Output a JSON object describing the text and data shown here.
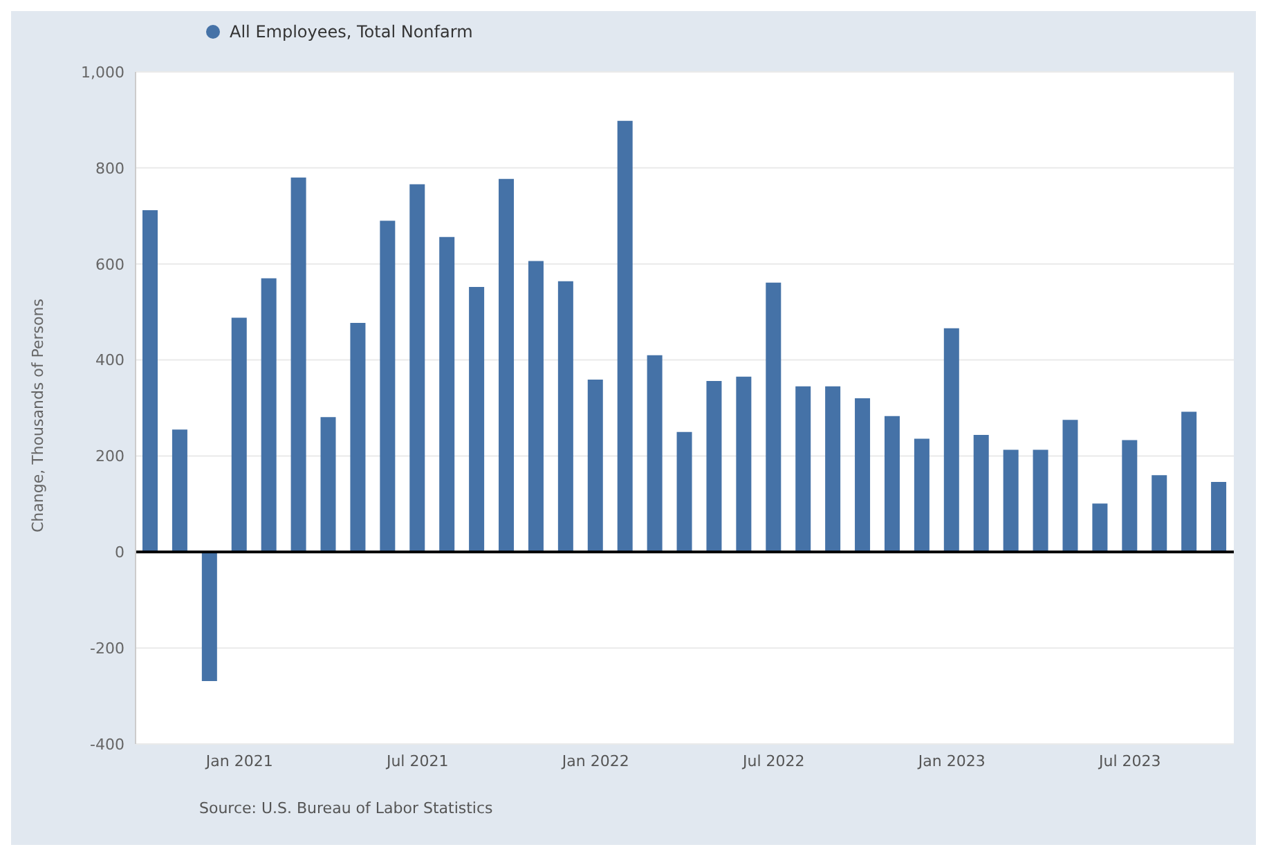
{
  "chart_data": {
    "type": "bar",
    "ylabel": "Change, Thousands of Persons",
    "annotations": [
      "Source: U.S. Bureau of Labor Statistics"
    ],
    "categories": [
      null,
      null,
      null,
      "Jan 2021",
      null,
      null,
      null,
      null,
      null,
      "Jul 2021",
      null,
      null,
      null,
      null,
      null,
      "Jan 2022",
      null,
      null,
      null,
      null,
      null,
      "Jul 2022",
      null,
      null,
      null,
      null,
      null,
      "Jan 2023",
      null,
      null,
      null,
      null,
      null,
      "Jul 2023",
      null,
      null,
      null
    ],
    "series": [
      {
        "name": "All Employees, Total Nonfarm",
        "color": "#4572a7",
        "values": [
          712,
          255,
          -269,
          488,
          570,
          780,
          281,
          477,
          690,
          766,
          656,
          552,
          777,
          606,
          564,
          359,
          898,
          410,
          250,
          356,
          365,
          561,
          345,
          345,
          320,
          283,
          236,
          466,
          244,
          213,
          213,
          275,
          101,
          233,
          160,
          292,
          146
        ]
      }
    ],
    "ylim": [
      -400,
      1000
    ],
    "yticks": [
      -400,
      -200,
      0,
      200,
      400,
      600,
      800,
      {
        "value": 1000,
        "label": "1,000"
      }
    ],
    "ref_lines": [
      {
        "axis": "y",
        "value": 0,
        "color": "#000000"
      }
    ],
    "grid": "y",
    "legend": "top left"
  }
}
